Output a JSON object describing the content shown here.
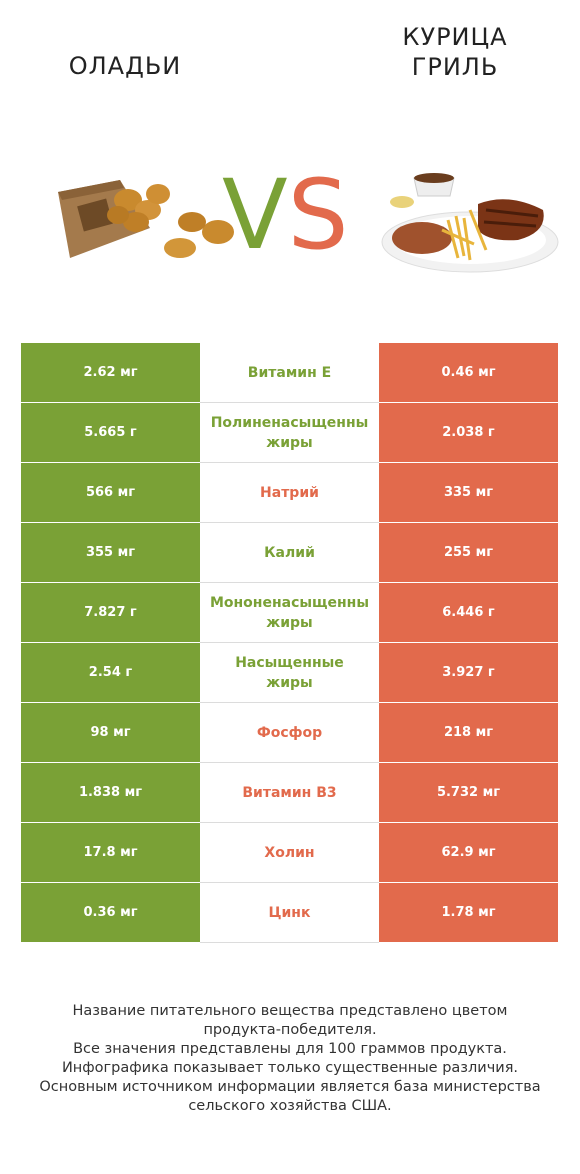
{
  "header": {
    "left_product": "ОЛАДЬИ",
    "right_product_line1": "КУРИЦА",
    "right_product_line2": "ГРИЛЬ",
    "vs_v": "V",
    "vs_s": "S"
  },
  "colors": {
    "left": "#7aa136",
    "right": "#e26a4c"
  },
  "rows": [
    {
      "left": "2.62 мг",
      "name": "Витамин E",
      "name_line2": "",
      "right": "0.46 мг",
      "winner": "left"
    },
    {
      "left": "5.665 г",
      "name": "Полиненасыщенны",
      "name_line2": "жиры",
      "right": "2.038 г",
      "winner": "left"
    },
    {
      "left": "566 мг",
      "name": "Натрий",
      "name_line2": "",
      "right": "335 мг",
      "winner": "right"
    },
    {
      "left": "355 мг",
      "name": "Калий",
      "name_line2": "",
      "right": "255 мг",
      "winner": "left"
    },
    {
      "left": "7.827 г",
      "name": "Мононенасыщенны",
      "name_line2": "жиры",
      "right": "6.446 г",
      "winner": "left"
    },
    {
      "left": "2.54 г",
      "name": "Насыщенные",
      "name_line2": "жиры",
      "right": "3.927 г",
      "winner": "left"
    },
    {
      "left": "98 мг",
      "name": "Фосфор",
      "name_line2": "",
      "right": "218 мг",
      "winner": "right"
    },
    {
      "left": "1.838 мг",
      "name": "Витамин B3",
      "name_line2": "",
      "right": "5.732 мг",
      "winner": "right"
    },
    {
      "left": "17.8 мг",
      "name": "Холин",
      "name_line2": "",
      "right": "62.9 мг",
      "winner": "right"
    },
    {
      "left": "0.36 мг",
      "name": "Цинк",
      "name_line2": "",
      "right": "1.78 мг",
      "winner": "right"
    }
  ],
  "footer": [
    "Название питательного вещества представлено цветом",
    "продукта-победителя.",
    "Все значения представлены для 100 граммов продукта.",
    "Инфографика показывает только существенные различия.",
    "Основным источником информации является база министерства",
    "сельского хозяйства США."
  ]
}
